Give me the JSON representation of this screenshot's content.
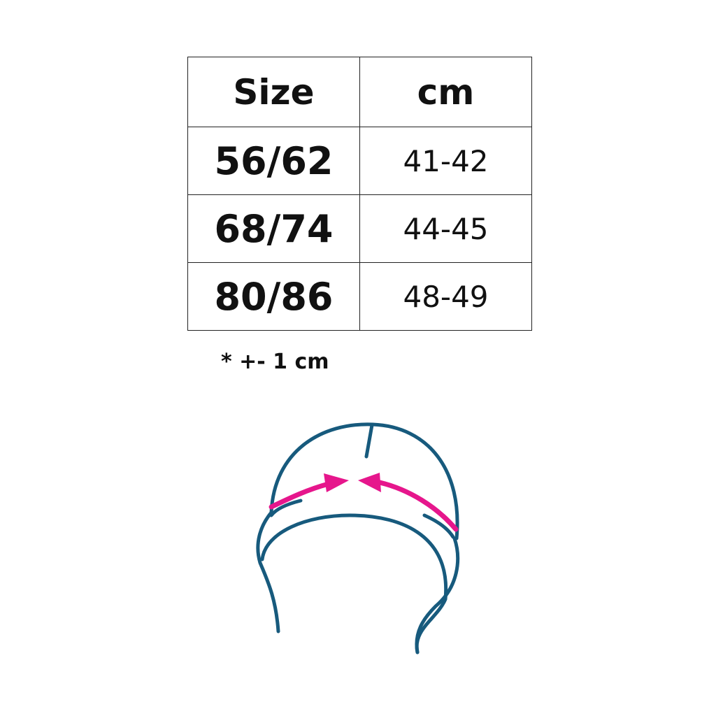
{
  "table": {
    "headers": [
      "Size",
      "cm"
    ],
    "rows": [
      {
        "size": "56/62",
        "cm": "41-42"
      },
      {
        "size": "68/74",
        "cm": "44-45"
      },
      {
        "size": "80/86",
        "cm": "48-49"
      }
    ]
  },
  "note": "* +- 1 cm",
  "illustration": {
    "icon": "hat-head-circumference-icon",
    "colors": {
      "outline": "#175a7d",
      "arrow": "#e6168c"
    }
  }
}
